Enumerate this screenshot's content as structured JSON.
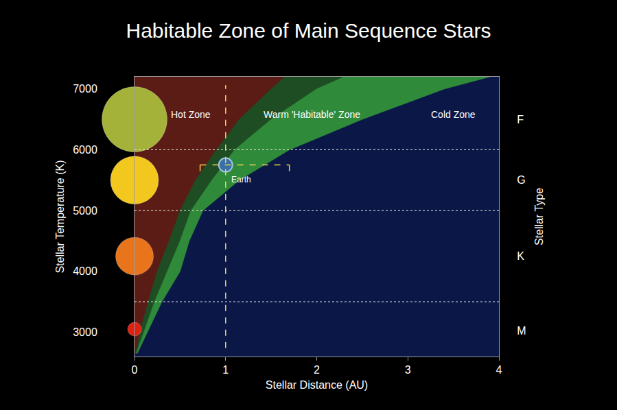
{
  "chart_data": {
    "type": "area",
    "title": "Habitable Zone of Main Sequence Stars",
    "x_label": "Stellar Distance (AU)",
    "y_label": "Stellar Temperature (K)",
    "y2_label": "Stellar Type",
    "xlim": [
      0,
      4
    ],
    "xticks": [
      0,
      1,
      2,
      3,
      4
    ],
    "ylim": [
      2600,
      7200
    ],
    "yticks": [
      3000,
      4000,
      5000,
      6000,
      7000
    ],
    "grid": false,
    "temperature": [
      2650,
      3000,
      3500,
      4000,
      4500,
      5000,
      5500,
      6000,
      6500,
      7000,
      7200
    ],
    "inner_edge": [
      0.01,
      0.06,
      0.15,
      0.25,
      0.38,
      0.5,
      0.67,
      0.9,
      1.15,
      1.5,
      1.65
    ],
    "middle_edge": [
      0.02,
      0.1,
      0.22,
      0.36,
      0.5,
      0.62,
      0.85,
      1.1,
      1.5,
      2.0,
      2.3
    ],
    "outer_edge": [
      0.03,
      0.14,
      0.3,
      0.5,
      0.6,
      0.75,
      1.15,
      1.7,
      2.5,
      3.4,
      3.9
    ],
    "zones": [
      {
        "label": "Hot Zone",
        "colors": [
          "#5c1c16"
        ],
        "label_distance": 0.62,
        "label_temperature": 6580
      },
      {
        "label": "Warm 'Habitable' Zone",
        "colors": [
          "#1e4d24",
          "#2f8a3a"
        ],
        "label_distance": 1.95,
        "label_temperature": 6580
      },
      {
        "label": "Cold Zone",
        "colors": [
          "#0b1746"
        ],
        "label_distance": 3.5,
        "label_temperature": 6580
      }
    ],
    "stellar_types": [
      {
        "label": "F",
        "temperature": 6500
      },
      {
        "label": "G",
        "temperature": 5500
      },
      {
        "label": "K",
        "temperature": 4250
      },
      {
        "label": "M",
        "temperature": 3020
      }
    ],
    "type_boundaries": [
      6000,
      5000,
      3500
    ],
    "line_style": "dotted",
    "stars": [
      {
        "distance": 0,
        "temperature": 6500,
        "color": "#a4b23a"
      },
      {
        "distance": 0,
        "temperature": 5500,
        "color": "#f2c81e"
      },
      {
        "distance": 0,
        "temperature": 4250,
        "color": "#e8741c"
      },
      {
        "distance": 0,
        "temperature": 3050,
        "color": "#e02010"
      }
    ],
    "earth": {
      "label": "Earth",
      "distance": 1,
      "temperature": 5750,
      "color": "#3b6fa8",
      "habitable_range": [
        0.72,
        1.7
      ]
    }
  }
}
